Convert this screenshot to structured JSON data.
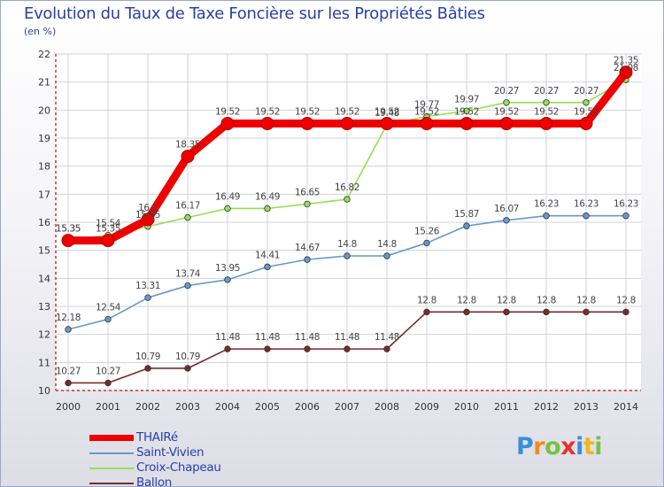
{
  "chart_data": {
    "type": "line",
    "title": "Evolution du Taux de Taxe Foncière sur les Propriétés Bâties",
    "ylabel": "(en %)",
    "xlabel": "",
    "x": [
      2000,
      2001,
      2002,
      2003,
      2004,
      2005,
      2006,
      2007,
      2008,
      2009,
      2010,
      2011,
      2012,
      2013,
      2014
    ],
    "ylim": [
      10,
      22
    ],
    "yticks": [
      10,
      11,
      12,
      13,
      14,
      15,
      16,
      17,
      18,
      19,
      20,
      21,
      22
    ],
    "grid": true,
    "series": [
      {
        "name": "THAIRé",
        "color": "#ee0000",
        "labels": [
          "15.35",
          "15.35",
          "16.1",
          "18.35",
          "19.52",
          "19.52",
          "19.52",
          "19.52",
          "19.52",
          "19.52",
          "19.52",
          "19.52",
          "19.52",
          "19.52",
          "21.35"
        ],
        "values": [
          15.35,
          15.35,
          16.1,
          18.35,
          19.52,
          19.52,
          19.52,
          19.52,
          19.52,
          19.52,
          19.52,
          19.52,
          19.52,
          19.52,
          21.35
        ]
      },
      {
        "name": "Saint-Vivien",
        "color": "#6699cc",
        "labels": [
          "12.18",
          "12.54",
          "13.31",
          "13.74",
          "13.95",
          "14.41",
          "14.67",
          "14.8",
          "14.8",
          "15.26",
          "15.87",
          "16.07",
          "16.23",
          "16.23",
          "16.23"
        ],
        "values": [
          12.18,
          12.54,
          13.31,
          13.74,
          13.95,
          14.41,
          14.67,
          14.8,
          14.8,
          15.26,
          15.87,
          16.07,
          16.23,
          16.23,
          16.23
        ]
      },
      {
        "name": "Croix-Chapeau",
        "color": "#99dd55",
        "labels": [
          "15.35",
          "15.54",
          "15.85",
          "16.17",
          "16.49",
          "16.49",
          "16.65",
          "16.82",
          "19.48",
          "19.77",
          "19.97",
          "20.27",
          "20.27",
          "20.27",
          "21.08"
        ],
        "values": [
          15.35,
          15.54,
          15.85,
          16.17,
          16.49,
          16.49,
          16.65,
          16.82,
          19.48,
          19.77,
          19.97,
          20.27,
          20.27,
          20.27,
          21.08
        ]
      },
      {
        "name": "Ballon",
        "color": "#7a2a2a",
        "labels": [
          "10.27",
          "10.27",
          "10.79",
          "10.79",
          "11.48",
          "11.48",
          "11.48",
          "11.48",
          "11.48",
          "12.8",
          "12.8",
          "12.8",
          "12.8",
          "12.8",
          "12.8"
        ],
        "values": [
          10.27,
          10.27,
          10.79,
          10.79,
          11.48,
          11.48,
          11.48,
          11.48,
          11.48,
          12.8,
          12.8,
          12.8,
          12.8,
          12.8,
          12.8
        ]
      }
    ]
  },
  "legend": {
    "items": [
      {
        "label": "THAIRé"
      },
      {
        "label": "Saint-Vivien"
      },
      {
        "label": "Croix-Chapeau"
      },
      {
        "label": "Ballon"
      }
    ]
  },
  "logo": {
    "letters": [
      "P",
      "r",
      "o",
      "x",
      "i",
      "t",
      "i"
    ],
    "colors": [
      "#3a8fd9",
      "#f08a1e",
      "#7ac143",
      "#e8322d",
      "#3a8fd9",
      "#f0b41e",
      "#7ac143"
    ]
  }
}
